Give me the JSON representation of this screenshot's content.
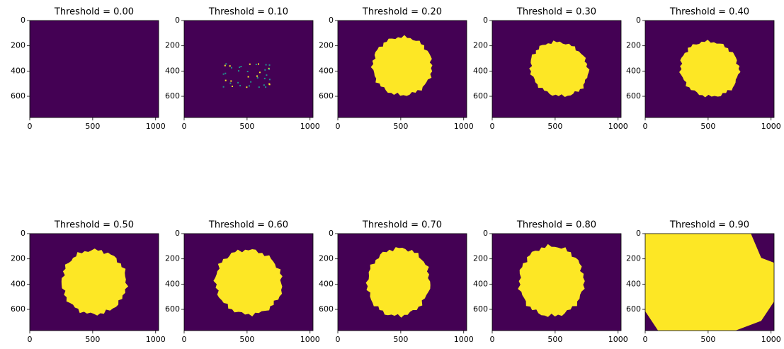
{
  "chart_data": [
    {
      "type": "image",
      "title": "Threshold = 0.00",
      "xlim": [
        0,
        1024
      ],
      "ylim": [
        768,
        0
      ],
      "xticks": [
        0,
        500,
        1000
      ],
      "yticks": [
        0,
        200,
        400,
        600
      ]
    },
    {
      "type": "image",
      "title": "Threshold = 0.10",
      "xlim": [
        0,
        1024
      ],
      "ylim": [
        768,
        0
      ],
      "xticks": [
        0,
        500,
        1000
      ],
      "yticks": [
        0,
        200,
        400,
        600
      ]
    },
    {
      "type": "image",
      "title": "Threshold = 0.20",
      "xlim": [
        0,
        1024
      ],
      "ylim": [
        768,
        0
      ],
      "xticks": [
        0,
        500,
        1000
      ],
      "yticks": [
        0,
        200,
        400,
        600
      ]
    },
    {
      "type": "image",
      "title": "Threshold = 0.30",
      "xlim": [
        0,
        1024
      ],
      "ylim": [
        768,
        0
      ],
      "xticks": [
        0,
        500,
        1000
      ],
      "yticks": [
        0,
        200,
        400,
        600
      ]
    },
    {
      "type": "image",
      "title": "Threshold = 0.40",
      "xlim": [
        0,
        1024
      ],
      "ylim": [
        768,
        0
      ],
      "xticks": [
        0,
        500,
        1000
      ],
      "yticks": [
        0,
        200,
        400,
        600
      ]
    },
    {
      "type": "image",
      "title": "Threshold = 0.50",
      "xlim": [
        0,
        1024
      ],
      "ylim": [
        768,
        0
      ],
      "xticks": [
        0,
        500,
        1000
      ],
      "yticks": [
        0,
        200,
        400,
        600
      ]
    },
    {
      "type": "image",
      "title": "Threshold = 0.60",
      "xlim": [
        0,
        1024
      ],
      "ylim": [
        768,
        0
      ],
      "xticks": [
        0,
        500,
        1000
      ],
      "yticks": [
        0,
        200,
        400,
        600
      ]
    },
    {
      "type": "image",
      "title": "Threshold = 0.70",
      "xlim": [
        0,
        1024
      ],
      "ylim": [
        768,
        0
      ],
      "xticks": [
        0,
        500,
        1000
      ],
      "yticks": [
        0,
        200,
        400,
        600
      ]
    },
    {
      "type": "image",
      "title": "Threshold = 0.80",
      "xlim": [
        0,
        1024
      ],
      "ylim": [
        768,
        0
      ],
      "xticks": [
        0,
        500,
        1000
      ],
      "yticks": [
        0,
        200,
        400,
        600
      ]
    },
    {
      "type": "image",
      "title": "Threshold = 0.90",
      "xlim": [
        0,
        1024
      ],
      "ylim": [
        768,
        0
      ],
      "xticks": [
        0,
        500,
        1000
      ],
      "yticks": [
        0,
        200,
        400,
        600
      ]
    }
  ]
}
